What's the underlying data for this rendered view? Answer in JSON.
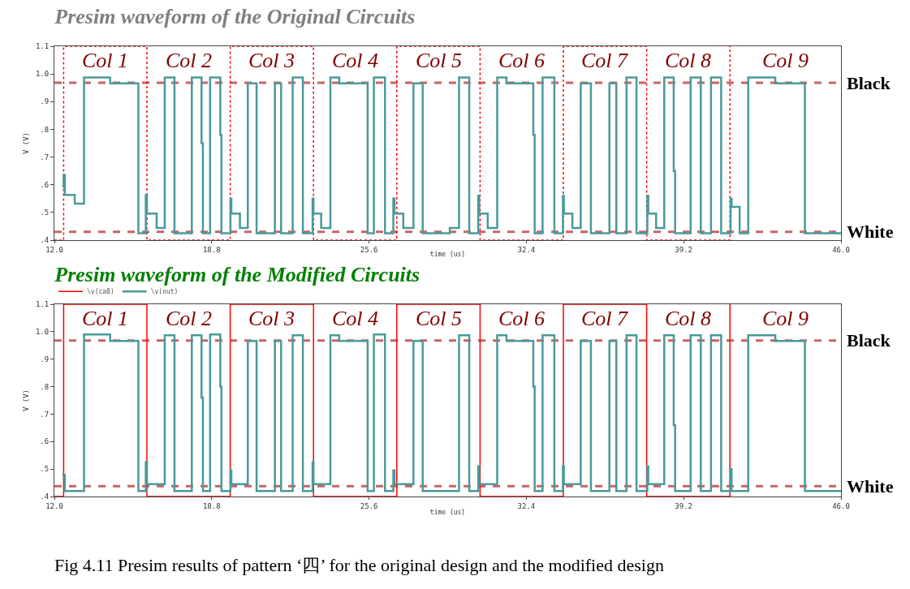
{
  "chart_data": [
    {
      "type": "step",
      "title": "Presim waveform of the Original Circuits",
      "xlabel": "time (us)",
      "ylabel": "V (V)",
      "xlim": [
        12,
        46
      ],
      "ylim": [
        0.4,
        1.1
      ],
      "xticks": [
        {
          "value": 12,
          "label": "12.0"
        },
        {
          "value": 18.8,
          "label": "18.8"
        },
        {
          "value": 25.6,
          "label": "25.6"
        },
        {
          "value": 32.4,
          "label": "32.4"
        },
        {
          "value": 39.2,
          "label": "39.2"
        },
        {
          "value": 46,
          "label": "46.0"
        }
      ],
      "yticks": [
        {
          "value": 0.4,
          "label": ".4"
        },
        {
          "value": 0.5,
          "label": ".5"
        },
        {
          "value": 0.6,
          "label": ".6"
        },
        {
          "value": 0.7,
          "label": ".7"
        },
        {
          "value": 0.8,
          "label": ".8"
        },
        {
          "value": 0.9,
          "label": ".9"
        },
        {
          "value": 1,
          "label": "1.0"
        },
        {
          "value": 1.1,
          "label": "1.1"
        }
      ],
      "series": [
        {
          "color": "#ff0000",
          "line_style": "dotted",
          "x": [
            12.0,
            12.4,
            16.0,
            19.6,
            23.2,
            26.8,
            30.4,
            34.0,
            37.6,
            41.2
          ],
          "values": [
            0.4,
            1.1,
            0.4,
            1.1,
            0.4,
            1.1,
            0.4,
            1.1,
            0.4,
            1.1
          ]
        },
        {
          "color": "#4a9a9a",
          "line_style": "solid",
          "x": [
            12.34,
            12.4,
            12.45,
            12.88,
            13.28,
            14.41,
            15.63,
            15.95,
            16.0,
            16.42,
            16.77,
            17.19,
            17.94,
            18.36,
            18.42,
            18.73,
            19.17,
            19.22,
            19.61,
            19.65,
            20.02,
            20.36,
            20.74,
            21.53,
            21.8,
            22.3,
            22.74,
            23.16,
            23.2,
            23.53,
            23.93,
            24.31,
            25.54,
            25.81,
            26.29,
            26.65,
            26.7,
            27.08,
            27.52,
            27.92,
            29.09,
            29.49,
            29.93,
            30.32,
            30.36,
            30.73,
            31.14,
            31.54,
            32.7,
            32.76,
            33.1,
            33.61,
            33.98,
            34.02,
            34.39,
            34.75,
            35.19,
            35.99,
            36.29,
            36.73,
            37.16,
            37.63,
            37.67,
            38.01,
            38.36,
            38.77,
            38.83,
            39.5,
            39.94,
            40.38,
            40.82,
            41.23,
            41.27,
            41.62,
            41.99,
            43.16,
            44.44,
            46.0
          ],
          "values": [
            0.594,
            0.636,
            0.563,
            0.532,
            0.987,
            0.966,
            0.425,
            0.563,
            0.496,
            0.444,
            0.987,
            0.425,
            0.987,
            0.75,
            0.425,
            0.987,
            0.78,
            0.425,
            0.55,
            0.496,
            0.444,
            0.966,
            0.425,
            0.966,
            0.425,
            0.987,
            0.425,
            0.55,
            0.496,
            0.444,
            0.987,
            0.966,
            0.425,
            0.987,
            0.425,
            0.55,
            0.496,
            0.444,
            0.966,
            0.425,
            0.444,
            0.987,
            0.425,
            0.56,
            0.496,
            0.444,
            0.987,
            0.966,
            0.78,
            0.425,
            0.987,
            0.425,
            0.56,
            0.496,
            0.444,
            0.966,
            0.425,
            0.966,
            0.425,
            0.987,
            0.425,
            0.56,
            0.496,
            0.444,
            0.987,
            0.65,
            0.425,
            0.987,
            0.425,
            0.987,
            0.425,
            0.55,
            0.52,
            0.425,
            0.987,
            0.966,
            0.425,
            0.425
          ]
        }
      ],
      "ref_lines": [
        {
          "axis": "y",
          "value": 0.968,
          "label": "Black",
          "color": "#c86464",
          "line_style": "dashed"
        },
        {
          "axis": "y",
          "value": 0.43,
          "label": "White",
          "color": "#c86464",
          "line_style": "dashed"
        }
      ],
      "annotations": [
        "Col 1",
        "Col 2",
        "Col 3",
        "Col 4",
        "Col 5",
        "Col 6",
        "Col 7",
        "Col 8",
        "Col 9"
      ]
    },
    {
      "type": "step",
      "title": "Presim waveform of the Modified Circuits",
      "xlabel": "time (us)",
      "ylabel": "V (V)",
      "xlim": [
        12,
        46
      ],
      "ylim": [
        0.4,
        1.1
      ],
      "legend": "top left",
      "xticks": [
        {
          "value": 12,
          "label": "12.0"
        },
        {
          "value": 18.8,
          "label": "18.8"
        },
        {
          "value": 25.6,
          "label": "25.6"
        },
        {
          "value": 32.4,
          "label": "32.4"
        },
        {
          "value": 39.2,
          "label": "39.2"
        },
        {
          "value": 46,
          "label": "46.0"
        }
      ],
      "yticks": [
        {
          "value": 0.4,
          "label": ".4"
        },
        {
          "value": 0.5,
          "label": ".5"
        },
        {
          "value": 0.6,
          "label": ".6"
        },
        {
          "value": 0.7,
          "label": ".7"
        },
        {
          "value": 0.8,
          "label": ".8"
        },
        {
          "value": 0.9,
          "label": ".9"
        },
        {
          "value": 1,
          "label": "1.0"
        },
        {
          "value": 1.1,
          "label": "1.1"
        }
      ],
      "series": [
        {
          "name": "\\v(ca0)",
          "color": "#ff0000",
          "line_style": "solid",
          "x": [
            12.0,
            12.4,
            16.0,
            19.6,
            23.2,
            26.8,
            30.4,
            34.0,
            37.6,
            41.2
          ],
          "values": [
            0.4,
            1.1,
            0.4,
            1.1,
            0.4,
            1.1,
            0.4,
            1.1,
            0.4,
            1.1
          ]
        },
        {
          "name": "\\v(out)",
          "color": "#4a9a9a",
          "line_style": "solid",
          "x": [
            12.34,
            12.45,
            13.28,
            14.41,
            15.63,
            15.95,
            16.0,
            16.77,
            17.19,
            17.94,
            18.36,
            18.42,
            18.73,
            19.17,
            19.22,
            19.61,
            19.65,
            20.36,
            20.74,
            21.53,
            21.8,
            22.3,
            22.74,
            23.16,
            23.2,
            23.93,
            24.31,
            25.54,
            25.81,
            26.29,
            26.65,
            26.7,
            27.52,
            27.92,
            29.49,
            29.93,
            30.32,
            30.36,
            31.14,
            31.54,
            32.7,
            32.76,
            33.1,
            33.61,
            33.98,
            34.02,
            34.75,
            35.19,
            35.99,
            36.29,
            36.73,
            37.16,
            37.63,
            37.67,
            38.36,
            38.77,
            38.83,
            39.5,
            39.94,
            40.38,
            40.82,
            41.23,
            41.27,
            41.99,
            43.16,
            44.44,
            46.0
          ],
          "values": [
            0.48,
            0.42,
            0.99,
            0.966,
            0.42,
            0.525,
            0.445,
            0.987,
            0.42,
            0.987,
            0.76,
            0.42,
            0.99,
            0.8,
            0.42,
            0.495,
            0.445,
            0.966,
            0.42,
            0.966,
            0.42,
            0.987,
            0.42,
            0.525,
            0.445,
            0.987,
            0.966,
            0.42,
            0.99,
            0.42,
            0.495,
            0.445,
            0.966,
            0.42,
            0.987,
            0.42,
            0.51,
            0.445,
            0.987,
            0.966,
            0.8,
            0.42,
            0.987,
            0.42,
            0.51,
            0.445,
            0.966,
            0.42,
            0.966,
            0.42,
            0.987,
            0.42,
            0.51,
            0.445,
            0.987,
            0.66,
            0.42,
            0.987,
            0.42,
            0.987,
            0.42,
            0.5,
            0.42,
            0.987,
            0.966,
            0.42,
            0.42
          ]
        }
      ],
      "ref_lines": [
        {
          "axis": "y",
          "value": 0.968,
          "label": "Black",
          "color": "#c86464",
          "line_style": "dashed"
        },
        {
          "axis": "y",
          "value": 0.438,
          "label": "White",
          "color": "#c86464",
          "line_style": "dashed"
        }
      ],
      "annotations": [
        "Col 1",
        "Col 2",
        "Col 3",
        "Col 4",
        "Col 5",
        "Col 6",
        "Col 7",
        "Col 8",
        "Col 9"
      ]
    },
    {
      "type": "other",
      "annotations": [
        "Fig 4.11 Presim results of pattern ‘四’ for the original design and the modified design"
      ]
    }
  ]
}
